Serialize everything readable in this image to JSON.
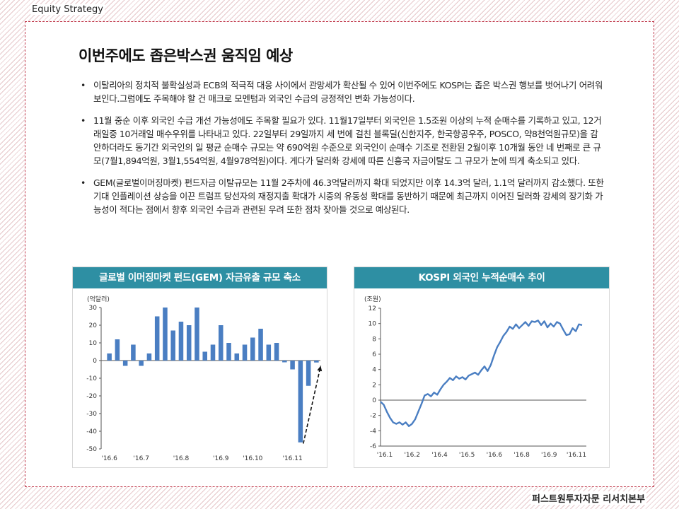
{
  "header": {
    "label": "Equity Strategy"
  },
  "footer": {
    "label": "퍼스트원투자자문 리서치본부"
  },
  "page": {
    "title": "이번주에도 좁은박스권 움직임 예상"
  },
  "bullets": [
    {
      "text": "이탈리아의 정치적 불확실성과 ECB의 적극적 대응 사이에서 관망세가 확산될 수 있어 이번주에도 KOSPI는 좁은 박스권 행보를 벗어나기 어려워 보인다.그럼에도 주목해야 할 건 매크로 모멘텀과 외국인 수급의 긍정적인 변화 가능성이다."
    },
    {
      "text": "11월 중순 이후 외국인 수급 개선 가능성에도 주목할 필요가 있다. 11월17일부터 외국인은 1.5조원 이상의 누적 순매수를 기록하고 있고, 12거래일중 10거래일 매수우위를 나타내고 있다. 22일부터 29일까지 세 번에 걸친 블록딜(신한지주, 한국항공우주, POSCO, 약8천억원규모)을 감안하더라도 동기간 외국인의 일 평균 순매수 규모는 약 690억원 수준으로 외국인이 순매수 기조로 전환된 2월이후 10개월 동안 네 번째로 큰 규모(7월1,894억원, 3월1,554억원, 4월978억원)이다. 게다가 달러화 강세에 따른 신흥국 자금이탈도 그 규모가 눈에 띄게 축소되고 있다."
    },
    {
      "text": "GEM(글로벌이머징마켓) 펀드자금 이탈규모는 11월 2주차에 46.3억달러까지 확대 되었지만 이후 14.3억 달러, 1.1억 달러까지 감소했다. 또한 기대 인플레이션 상승을 이끈 트럼프 당선자의 재정지출 확대가 시중의 유동성 확대를 동반하기 때문에 최근까지 이어진 달러화 강세의 장기화 가능성이 적다는 점에서 향후 외국인 수급과 관련된 우려 또한 점차 잦아들 것으로 예상된다."
    }
  ],
  "chart_data": [
    {
      "type": "bar",
      "title": "글로벌 이머징마켓 펀드(GEM) 자금유출 규모 축소",
      "ylabel": "(억달러)",
      "ylim": [
        -50,
        30
      ],
      "yticks": [
        30,
        20,
        10,
        0,
        -10,
        -20,
        -30,
        -40,
        -50
      ],
      "xtick_labels": [
        "'16.6",
        "'16.7",
        "'16.8",
        "'16.9",
        "'16.10",
        "'16.11"
      ],
      "xtick_bar_index": [
        0,
        4,
        9,
        14,
        18,
        23
      ],
      "values": [
        4,
        12,
        -3,
        9,
        -3,
        4,
        25,
        30,
        17,
        22,
        20,
        30,
        5,
        9,
        20,
        10,
        4,
        9,
        13,
        18,
        9,
        10,
        -1,
        -5,
        -46.3,
        -14.3,
        -1.1
      ],
      "annotation": "dashed arrow indicating recovery trend",
      "colors": {
        "bar": "#4a7ec2"
      },
      "grid": false
    },
    {
      "type": "line",
      "title": "KOSPI 외국인 누적순매수 추이",
      "ylabel": "(조원)",
      "ylim": [
        -6,
        12
      ],
      "yticks": [
        12,
        10,
        8,
        6,
        4,
        2,
        0,
        -2,
        -4,
        -6
      ],
      "xtick_labels": [
        "'16.1",
        "'16.2",
        "'16.4",
        "'16.5",
        "'16.6",
        "'16.8",
        "'16.9",
        "'16.11"
      ],
      "series": [
        {
          "values": [
            -0.2,
            -0.6,
            -1.5,
            -2.3,
            -2.9,
            -3.1,
            -2.9,
            -3.2,
            -2.9,
            -3.4,
            -3.1,
            -2.5,
            -1.5,
            -0.5,
            0.6,
            0.8,
            0.5,
            1.0,
            0.7,
            1.4,
            2.0,
            2.4,
            2.9,
            2.6,
            3.1,
            2.8,
            3.0,
            2.7,
            3.2,
            3.4,
            3.6,
            3.3,
            3.9,
            4.4,
            3.8,
            4.6,
            5.8,
            6.9,
            7.6,
            8.4,
            8.9,
            9.6,
            9.3,
            9.9,
            9.4,
            9.8,
            10.2,
            9.7,
            10.3,
            10.2,
            10.4,
            9.8,
            10.3,
            9.5,
            10.0,
            9.6,
            10.2,
            10.0,
            9.2,
            8.5,
            8.6,
            9.4,
            9.0,
            9.9,
            9.8
          ]
        }
      ],
      "reference_line": 0,
      "colors": {
        "line": "#4a7ec2"
      },
      "grid": false
    }
  ]
}
